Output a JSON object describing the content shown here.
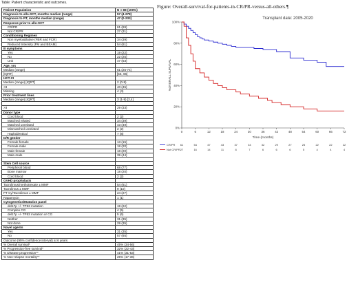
{
  "table_caption": "Table: Patient characteristic and outcomes.",
  "table": {
    "header": [
      "Patient Population",
      "N = 88 (100%)"
    ],
    "rows": [
      {
        "label": "Diagnosis to allo-SCT, months median (range)",
        "value": "57 (4-278)",
        "style": "bold"
      },
      {
        "label": "Diagnosis to RT, months median (range)",
        "value": "47 (0-233)",
        "style": "bold"
      },
      {
        "label": "Response prior to allo-SCT",
        "value": "",
        "style": "bold-group"
      },
      {
        "label": "CR/PR",
        "value": "61 (69)",
        "style": "indent"
      },
      {
        "label": "Not CR/PR",
        "value": "27 (31)",
        "style": "indent"
      },
      {
        "label": "Conditioning Regimen",
        "value": "",
        "style": "bold-group"
      },
      {
        "label": "Non myeloablative (FBR and FCR)",
        "value": "34 (39)",
        "style": "indent"
      },
      {
        "label": "Reduced Intensity (FM and BEAM)",
        "value": "54 (61)",
        "style": "indent"
      },
      {
        "label": "B symptoms",
        "value": "",
        "style": "bold-group"
      },
      {
        "label": "Yes",
        "value": "19 (22)",
        "style": "indent"
      },
      {
        "label": "No",
        "value": "22 (25)",
        "style": "indent"
      },
      {
        "label": "Unk",
        "value": "47 (53)",
        "style": "indent"
      },
      {
        "label": "Age, yrs",
        "value": "",
        "style": "bold-group"
      },
      {
        "label": "Median (range)",
        "value": "61 (25-74)",
        "style": "plain"
      },
      {
        "label": "[IQRT]",
        "value": "[55, 66]",
        "style": "plain"
      },
      {
        "label": "HCT-CI",
        "value": "",
        "style": "bold-group"
      },
      {
        "label": "Median (range) [IQRT]",
        "value": "2 (0-9)",
        "style": "plain"
      },
      {
        "label": "<3",
        "value": "40 (45)",
        "style": "plain"
      },
      {
        "label": "Missing",
        "value": "4 (4)",
        "style": "plain"
      },
      {
        "label": "Prior treatment lines",
        "value": "",
        "style": "bold-group"
      },
      {
        "label": "Median (range) [IQRT]",
        "value": "3 (1-9) [2,4]",
        "style": "plain"
      },
      {
        "label": "",
        "value": "",
        "style": "spacer"
      },
      {
        "label": ">3",
        "value": "29 (33)",
        "style": "plain"
      },
      {
        "label": "Donor type",
        "value": "",
        "style": "bold-group"
      },
      {
        "label": "Cord blood",
        "value": "2 (2)",
        "style": "indent"
      },
      {
        "label": "Matched related",
        "value": "34 (39)",
        "style": "indent"
      },
      {
        "label": "Matched unrelated",
        "value": "43 (49)",
        "style": "indent"
      },
      {
        "label": "Mismatched unrelated",
        "value": "2 (2)",
        "style": "indent"
      },
      {
        "label": "Haploidentical",
        "value": "7 (8)",
        "style": "indent"
      },
      {
        "label": "D/R gender",
        "value": "",
        "style": "bold-group"
      },
      {
        "label": "Female-female",
        "value": "13 (15)",
        "style": "indent"
      },
      {
        "label": "Female-male",
        "value": "18 (20)",
        "style": "indent"
      },
      {
        "label": "Male-female",
        "value": "18 (20)",
        "style": "indent"
      },
      {
        "label": "Male-male",
        "value": "39 (44)",
        "style": "indent"
      },
      {
        "label": "",
        "value": "",
        "style": "spacer"
      },
      {
        "label": "Stem Cell source",
        "value": "",
        "style": "bold-group"
      },
      {
        "label": "Peripheral blood",
        "value": "68 (77)",
        "style": "indent"
      },
      {
        "label": "Bone marrow",
        "value": "18 (20)",
        "style": "indent"
      },
      {
        "label": "Cord blood",
        "value": "2 (2)",
        "style": "indent"
      },
      {
        "label": "GVHD prophylaxis",
        "value": "",
        "style": "bold-group"
      },
      {
        "label": "Tacrolimus/methotrexate ± MMF",
        "value": "54 (61)",
        "style": "plain"
      },
      {
        "label": "Tacrolimus ± MMF",
        "value": "9 (10)",
        "style": "plain"
      },
      {
        "label": "PT Cy/Tacrolimus ± MMF",
        "value": "24 (27)",
        "style": "plain"
      },
      {
        "label": "Rapamycin",
        "value": "1 (1)",
        "style": "plain"
      },
      {
        "label": "Cytogenetics/Mutation panel",
        "value": "",
        "style": "bold-group"
      },
      {
        "label": "del17p +/- TP53 mutation",
        "value": "19 (22)",
        "style": "indent"
      },
      {
        "label": "Complex CG",
        "value": "4 (5)",
        "style": "indent"
      },
      {
        "label": "del17p +/- TP53 mutation or CG",
        "value": "5 (6)",
        "style": "indent"
      },
      {
        "label": "Neither",
        "value": "31 (35)",
        "style": "indent"
      },
      {
        "label": "Not done",
        "value": "29 (35)",
        "style": "indent"
      },
      {
        "label": "Novel agents",
        "value": "",
        "style": "bold-group"
      },
      {
        "label": "Yes",
        "value": "31 (35)",
        "style": "indent"
      },
      {
        "label": "No",
        "value": "57 (65)",
        "style": "indent"
      },
      {
        "label": "Outcome (95% confidence interval) at 6 years",
        "value": "",
        "style": "plain"
      },
      {
        "label": "% Overall survival*",
        "value": "45% (34-56)",
        "style": "plain"
      },
      {
        "label": "% Progression-free survival*",
        "value": "32% (22-43)",
        "style": "plain"
      },
      {
        "label": "% Disease progression**",
        "value": "41% (31-53)",
        "style": "plain"
      },
      {
        "label": "% Non-relapse mortality**",
        "value": "25% (17-36)",
        "style": "plain"
      }
    ]
  },
  "figure_title": "Figure: Overall-survival-for-patients-in-CR/PR-versus-all-others.¶",
  "chart_data": {
    "type": "line",
    "title": "Transplant date: 2005-2020",
    "xlabel": "Time (months)",
    "ylabel": "%OVERALL SURVIVAL",
    "xlim": [
      0,
      72
    ],
    "ylim": [
      0,
      100
    ],
    "xticks": [
      "0",
      "6",
      "12",
      "18",
      "24",
      "30",
      "36",
      "42",
      "48",
      "54",
      "60",
      "66",
      "72"
    ],
    "yticks": [
      "0%",
      "20%",
      "40%",
      "60%",
      "80%",
      "100%"
    ],
    "series": [
      {
        "name": "CR/PR",
        "color": "#2a2ad0",
        "x": [
          0,
          1,
          2,
          3,
          4,
          5,
          6,
          7,
          8,
          9,
          10,
          12,
          14,
          16,
          18,
          20,
          22,
          24,
          28,
          32,
          36,
          42,
          48,
          54,
          60,
          64,
          72
        ],
        "y": [
          100,
          98,
          96,
          94,
          92,
          90,
          88,
          86,
          85,
          84,
          83,
          82,
          81,
          80,
          79,
          78,
          77,
          76,
          76,
          75,
          74,
          72,
          66,
          64,
          62,
          58,
          58
        ],
        "at_risk": [
          "61",
          "54",
          "47",
          "43",
          "37",
          "34",
          "32",
          "29",
          "27",
          "25",
          "22",
          "22",
          "22"
        ]
      },
      {
        "name": "Not CR/PR",
        "color": "#d42020",
        "x": [
          0,
          1,
          2,
          3,
          4,
          5,
          6,
          8,
          10,
          12,
          14,
          16,
          18,
          20,
          24,
          26,
          30,
          34,
          38,
          40,
          44,
          48,
          54,
          60,
          72
        ],
        "y": [
          100,
          96,
          85,
          78,
          70,
          63,
          56,
          52,
          48,
          45,
          42,
          40,
          38,
          36,
          34,
          32,
          30,
          28,
          26,
          24,
          22,
          20,
          18,
          16,
          16
        ],
        "at_risk": [
          "27",
          "16",
          "14",
          "11",
          "8",
          "7",
          "6",
          "6",
          "6",
          "5",
          "4",
          "4",
          "4"
        ]
      }
    ]
  }
}
